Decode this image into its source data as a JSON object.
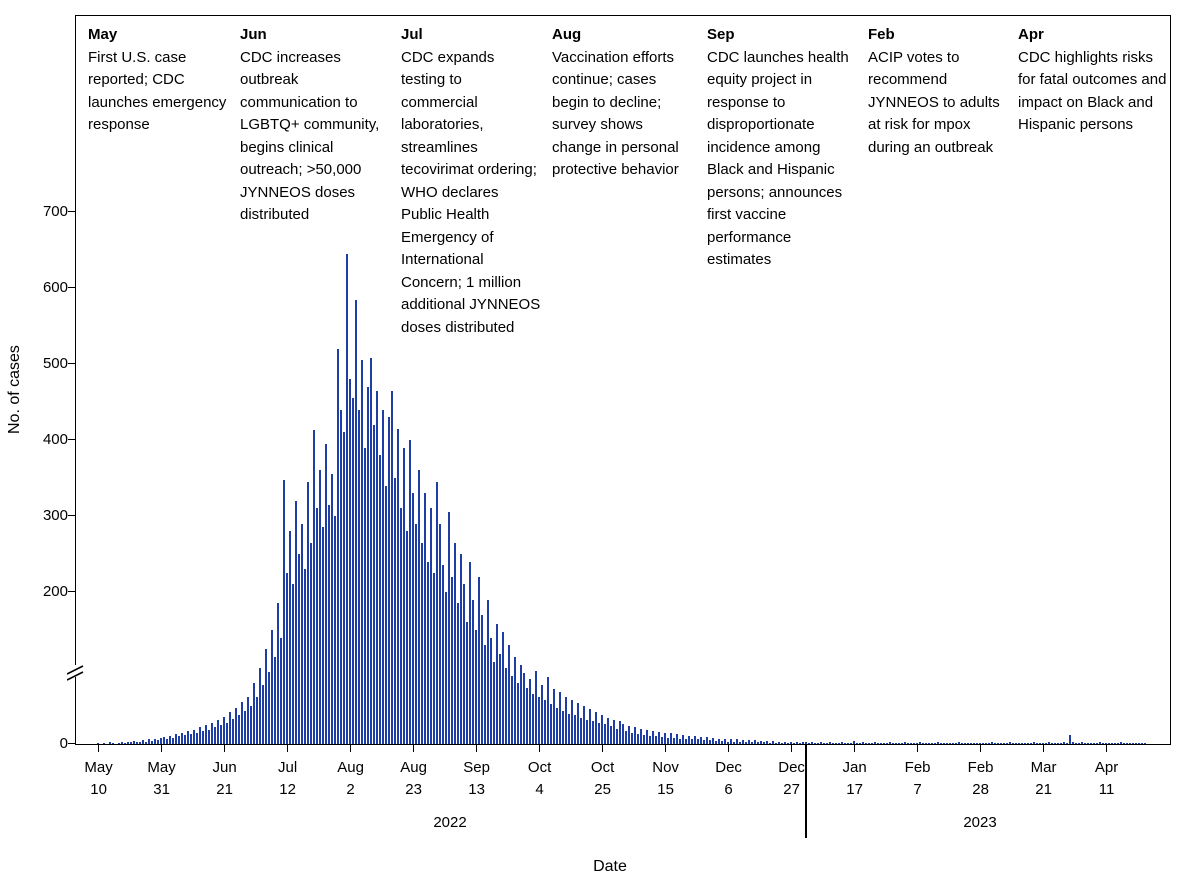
{
  "chart_data": {
    "type": "bar",
    "ylabel": "No. of cases",
    "xlabel": "Date",
    "color": "#1e3ea6",
    "ylim": [
      0,
      700
    ],
    "yticks": [
      0,
      200,
      300,
      400,
      500,
      600,
      700
    ],
    "y_axis_break": true,
    "grid": false,
    "legend": false,
    "year_labels": [
      "2022",
      "2023"
    ],
    "xticks": [
      {
        "month": "May",
        "day": "10",
        "day_index": 0
      },
      {
        "month": "May",
        "day": "31",
        "day_index": 21
      },
      {
        "month": "Jun",
        "day": "21",
        "day_index": 42
      },
      {
        "month": "Jul",
        "day": "12",
        "day_index": 63
      },
      {
        "month": "Aug",
        "day": "2",
        "day_index": 84
      },
      {
        "month": "Aug",
        "day": "23",
        "day_index": 105
      },
      {
        "month": "Sep",
        "day": "13",
        "day_index": 126
      },
      {
        "month": "Oct",
        "day": "4",
        "day_index": 147
      },
      {
        "month": "Oct",
        "day": "25",
        "day_index": 168
      },
      {
        "month": "Nov",
        "day": "15",
        "day_index": 189
      },
      {
        "month": "Dec",
        "day": "6",
        "day_index": 210
      },
      {
        "month": "Dec",
        "day": "27",
        "day_index": 231
      },
      {
        "month": "Jan",
        "day": "17",
        "day_index": 252
      },
      {
        "month": "Feb",
        "day": "7",
        "day_index": 273
      },
      {
        "month": "Feb",
        "day": "28",
        "day_index": 294
      },
      {
        "month": "Mar",
        "day": "21",
        "day_index": 315
      },
      {
        "month": "Apr",
        "day": "11",
        "day_index": 336
      }
    ],
    "values": [
      1,
      0,
      1,
      0,
      2,
      1,
      0,
      1,
      2,
      1,
      3,
      2,
      4,
      2,
      3,
      5,
      3,
      6,
      4,
      7,
      5,
      8,
      9,
      6,
      11,
      8,
      13,
      10,
      15,
      12,
      17,
      13,
      19,
      15,
      22,
      17,
      25,
      19,
      28,
      22,
      32,
      25,
      36,
      28,
      42,
      33,
      48,
      38,
      55,
      44,
      62,
      50,
      80,
      62,
      100,
      78,
      125,
      95,
      150,
      115,
      185,
      140,
      348,
      225,
      280,
      210,
      320,
      250,
      290,
      230,
      345,
      265,
      413,
      310,
      360,
      285,
      395,
      315,
      355,
      300,
      520,
      440,
      410,
      645,
      480,
      455,
      584,
      440,
      505,
      390,
      470,
      508,
      420,
      465,
      380,
      440,
      340,
      430,
      465,
      350,
      415,
      310,
      390,
      280,
      400,
      330,
      290,
      360,
      265,
      330,
      240,
      310,
      225,
      345,
      290,
      235,
      200,
      305,
      220,
      265,
      185,
      250,
      210,
      160,
      240,
      190,
      150,
      220,
      170,
      130,
      190,
      140,
      108,
      158,
      118,
      148,
      100,
      130,
      90,
      114,
      80,
      104,
      94,
      74,
      85,
      66,
      96,
      62,
      78,
      58,
      88,
      52,
      72,
      48,
      68,
      44,
      62,
      40,
      58,
      38,
      54,
      34,
      50,
      32,
      46,
      30,
      42,
      28,
      38,
      26,
      34,
      24,
      32,
      20,
      30,
      26,
      17,
      24,
      15,
      22,
      13,
      20,
      12,
      18,
      11,
      17,
      10,
      16,
      9,
      15,
      8,
      14,
      8,
      13,
      7,
      12,
      7,
      11,
      6,
      10,
      6,
      9,
      5,
      9,
      5,
      8,
      4,
      7,
      4,
      7,
      3,
      6,
      3,
      6,
      3,
      5,
      2,
      5,
      2,
      5,
      2,
      4,
      2,
      4,
      1,
      4,
      1,
      3,
      1,
      3,
      1,
      3,
      1,
      2,
      1,
      2,
      2,
      1,
      2,
      1,
      1,
      2,
      1,
      1,
      2,
      1,
      1,
      1,
      2,
      1,
      1,
      1,
      4,
      1,
      1,
      2,
      1,
      1,
      1,
      2,
      1,
      1,
      1,
      1,
      2,
      1,
      1,
      1,
      1,
      2,
      1,
      1,
      1,
      1,
      2,
      1,
      1,
      1,
      1,
      1,
      2,
      1,
      1,
      1,
      1,
      1,
      1,
      2,
      1,
      1,
      1,
      1,
      1,
      1,
      1,
      1,
      1,
      1,
      2,
      1,
      1,
      1,
      1,
      1,
      2,
      1,
      1,
      1,
      1,
      1,
      1,
      1,
      2,
      1,
      1,
      1,
      1,
      2,
      1,
      1,
      1,
      1,
      3,
      1,
      12,
      2,
      1,
      1,
      2,
      1,
      1,
      1,
      1,
      1,
      2,
      1,
      1,
      1,
      1,
      1,
      1,
      2,
      1,
      1,
      1,
      1,
      1,
      1,
      1,
      1
    ],
    "annotations": [
      {
        "month": "May",
        "text": "First U.S. case reported; CDC launches emergency response"
      },
      {
        "month": "Jun",
        "text": "CDC increases outbreak communication to LGBTQ+ community, begins clinical outreach; >50,000 JYNNEOS doses distributed"
      },
      {
        "month": "Jul",
        "text": "CDC expands testing to commercial laboratories, streamlines tecovirimat ordering; WHO declares Public Health Emergency of International Concern; 1 million additional JYNNEOS doses distributed"
      },
      {
        "month": "Aug",
        "text": "Vaccination efforts continue; cases begin to decline; survey shows change in personal protective behavior"
      },
      {
        "month": "Sep",
        "text": "CDC launches health equity project in response to disproportionate incidence among Black and Hispanic persons; announces first vaccine performance estimates"
      },
      {
        "month": "Feb",
        "text": "ACIP votes to recommend JYNNEOS to adults at risk for mpox during an outbreak"
      },
      {
        "month": "Apr",
        "text": "CDC highlights risks for fatal outcomes and impact on Black and Hispanic persons"
      }
    ]
  }
}
